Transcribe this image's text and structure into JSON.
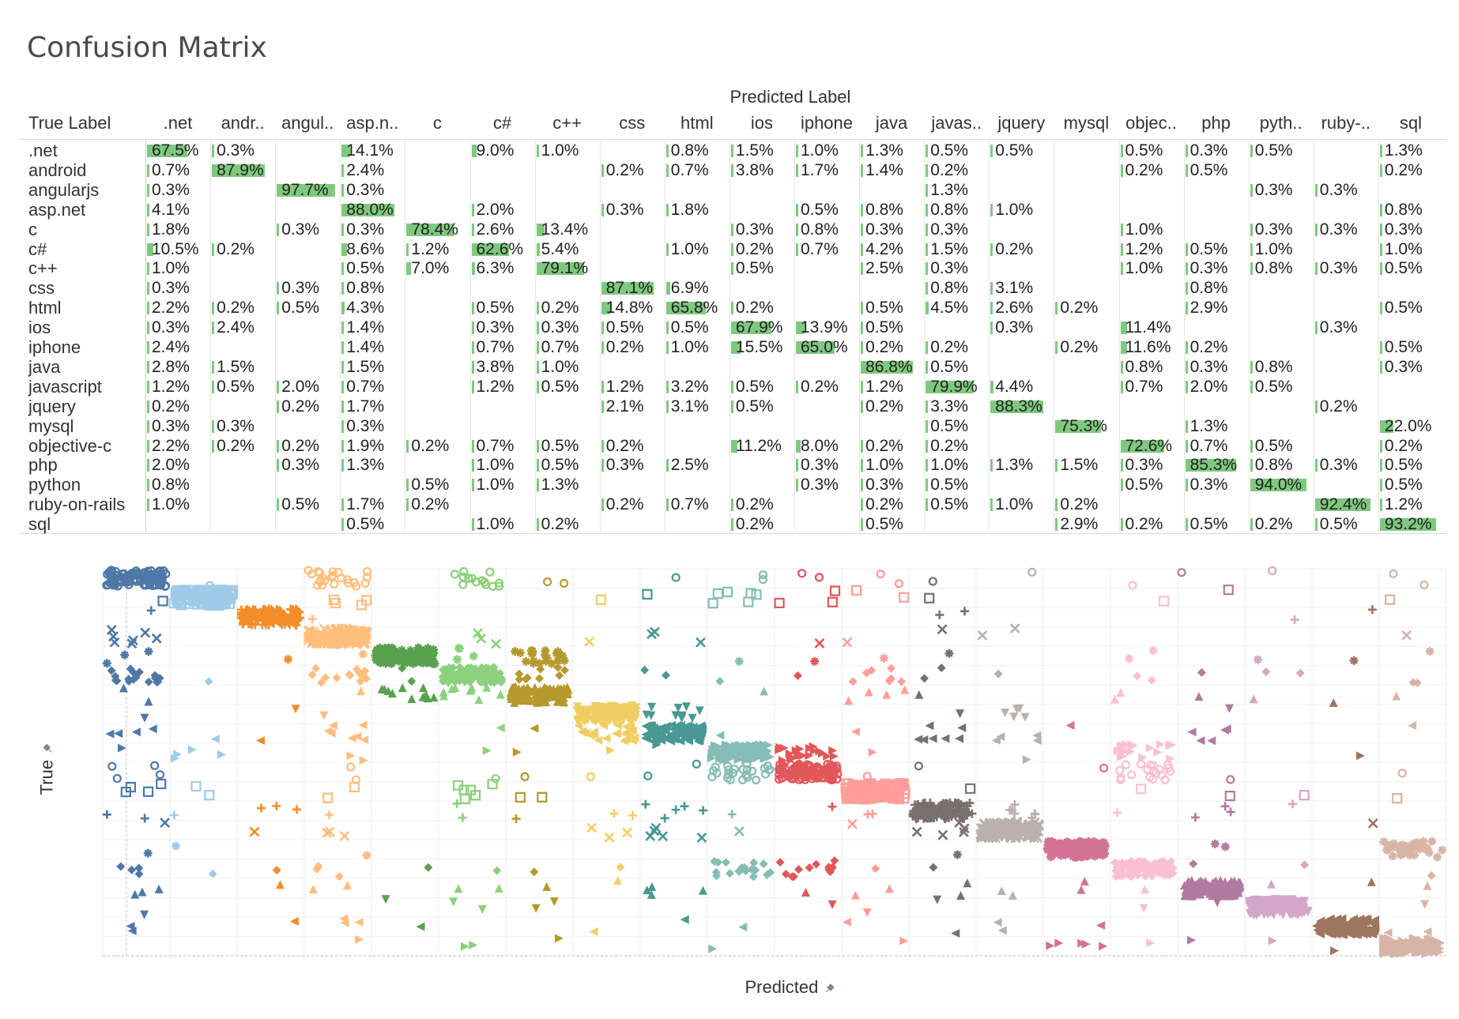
{
  "title": "Confusion Matrix",
  "table": {
    "column_header_title": "Predicted Label",
    "row_header_title": "True Label",
    "columns": [
      ".net",
      "andr..",
      "angul..",
      "asp.n..",
      "c",
      "c#",
      "c++",
      "css",
      "html",
      "ios",
      "iphone",
      "java",
      "javas..",
      "jquery",
      "mysql",
      "objec..",
      "php",
      "pyth..",
      "ruby-..",
      "sql"
    ],
    "rows": [
      ".net",
      "android",
      "angularjs",
      "asp.net",
      "c",
      "c#",
      "c++",
      "css",
      "html",
      "ios",
      "iphone",
      "java",
      "javascript",
      "jquery",
      "mysql",
      "objective-c",
      "php",
      "python",
      "ruby-on-rails",
      "sql"
    ],
    "cells": [
      [
        "67.5%",
        "0.3%",
        "",
        "14.1%",
        "",
        "9.0%",
        "1.0%",
        "",
        "0.8%",
        "1.5%",
        "1.0%",
        "1.3%",
        "0.5%",
        "0.5%",
        "",
        "0.5%",
        "0.3%",
        "0.5%",
        "",
        "1.3%"
      ],
      [
        "0.7%",
        "87.9%",
        "",
        "2.4%",
        "",
        "",
        "",
        "0.2%",
        "0.7%",
        "3.8%",
        "1.7%",
        "1.4%",
        "0.2%",
        "",
        "",
        "0.2%",
        "0.5%",
        "",
        "",
        "0.2%"
      ],
      [
        "0.3%",
        "",
        "97.7%",
        "0.3%",
        "",
        "",
        "",
        "",
        "",
        "",
        "",
        "",
        "1.3%",
        "",
        "",
        "",
        "",
        "0.3%",
        "0.3%",
        ""
      ],
      [
        "4.1%",
        "",
        "",
        "88.0%",
        "",
        "2.0%",
        "",
        "0.3%",
        "1.8%",
        "",
        "0.5%",
        "0.8%",
        "0.8%",
        "1.0%",
        "",
        "",
        "",
        "",
        "",
        "0.8%"
      ],
      [
        "1.8%",
        "",
        "0.3%",
        "0.3%",
        "78.4%",
        "2.6%",
        "13.4%",
        "",
        "",
        "0.3%",
        "0.8%",
        "0.3%",
        "0.3%",
        "",
        "",
        "1.0%",
        "",
        "0.3%",
        "0.3%",
        "0.3%"
      ],
      [
        "10.5%",
        "0.2%",
        "",
        "8.6%",
        "1.2%",
        "62.6%",
        "5.4%",
        "",
        "1.0%",
        "0.2%",
        "0.7%",
        "4.2%",
        "1.5%",
        "0.2%",
        "",
        "1.2%",
        "0.5%",
        "1.0%",
        "",
        "1.0%"
      ],
      [
        "1.0%",
        "",
        "",
        "0.5%",
        "7.0%",
        "6.3%",
        "79.1%",
        "",
        "",
        "0.5%",
        "",
        "2.5%",
        "0.3%",
        "",
        "",
        "1.0%",
        "0.3%",
        "0.8%",
        "0.3%",
        "0.5%"
      ],
      [
        "0.3%",
        "",
        "0.3%",
        "0.8%",
        "",
        "",
        "",
        "87.1%",
        "6.9%",
        "",
        "",
        "",
        "0.8%",
        "3.1%",
        "",
        "",
        "0.8%",
        "",
        "",
        ""
      ],
      [
        "2.2%",
        "0.2%",
        "0.5%",
        "4.3%",
        "",
        "0.5%",
        "0.2%",
        "14.8%",
        "65.8%",
        "0.2%",
        "",
        "0.5%",
        "4.5%",
        "2.6%",
        "0.2%",
        "",
        "2.9%",
        "",
        "",
        "0.5%"
      ],
      [
        "0.3%",
        "2.4%",
        "",
        "1.4%",
        "",
        "0.3%",
        "0.3%",
        "0.5%",
        "0.5%",
        "67.9%",
        "13.9%",
        "0.5%",
        "",
        "0.3%",
        "",
        "11.4%",
        "",
        "",
        "0.3%",
        ""
      ],
      [
        "2.4%",
        "",
        "",
        "1.4%",
        "",
        "0.7%",
        "0.7%",
        "0.2%",
        "1.0%",
        "15.5%",
        "65.0%",
        "0.2%",
        "0.2%",
        "",
        "0.2%",
        "11.6%",
        "0.2%",
        "",
        "",
        "0.5%"
      ],
      [
        "2.8%",
        "1.5%",
        "",
        "1.5%",
        "",
        "3.8%",
        "1.0%",
        "",
        "",
        "",
        "",
        "86.8%",
        "0.5%",
        "",
        "",
        "0.8%",
        "0.3%",
        "0.8%",
        "",
        "0.3%"
      ],
      [
        "1.2%",
        "0.5%",
        "2.0%",
        "0.7%",
        "",
        "1.2%",
        "0.5%",
        "1.2%",
        "3.2%",
        "0.5%",
        "0.2%",
        "1.2%",
        "79.9%",
        "4.4%",
        "",
        "0.7%",
        "2.0%",
        "0.5%",
        "",
        ""
      ],
      [
        "0.2%",
        "",
        "0.2%",
        "1.7%",
        "",
        "",
        "",
        "2.1%",
        "3.1%",
        "0.5%",
        "",
        "0.2%",
        "3.3%",
        "88.3%",
        "",
        "",
        "",
        "",
        "0.2%",
        ""
      ],
      [
        "0.3%",
        "0.3%",
        "",
        "0.3%",
        "",
        "",
        "",
        "",
        "",
        "",
        "",
        "",
        "0.5%",
        "",
        "75.3%",
        "",
        "1.3%",
        "",
        "",
        "22.0%"
      ],
      [
        "2.2%",
        "0.2%",
        "0.2%",
        "1.9%",
        "0.2%",
        "0.7%",
        "0.5%",
        "0.2%",
        "",
        "11.2%",
        "8.0%",
        "0.2%",
        "0.2%",
        "",
        "",
        "72.6%",
        "0.7%",
        "0.5%",
        "",
        "0.2%"
      ],
      [
        "2.0%",
        "",
        "0.3%",
        "1.3%",
        "",
        "1.0%",
        "0.5%",
        "0.3%",
        "2.5%",
        "",
        "0.3%",
        "1.0%",
        "1.0%",
        "1.3%",
        "1.5%",
        "0.3%",
        "85.3%",
        "0.8%",
        "0.3%",
        "0.5%"
      ],
      [
        "0.8%",
        "",
        "",
        "",
        "0.5%",
        "1.0%",
        "1.3%",
        "",
        "",
        "",
        "0.3%",
        "0.3%",
        "0.5%",
        "",
        "",
        "0.5%",
        "0.3%",
        "94.0%",
        "",
        "0.5%"
      ],
      [
        "1.0%",
        "",
        "0.5%",
        "1.7%",
        "0.2%",
        "",
        "",
        "0.2%",
        "0.7%",
        "0.2%",
        "",
        "0.2%",
        "0.5%",
        "1.0%",
        "0.2%",
        "",
        "",
        "",
        "92.4%",
        "1.2%"
      ],
      [
        "",
        "",
        "",
        "0.5%",
        "",
        "1.0%",
        "0.2%",
        "",
        "",
        "0.2%",
        "",
        "0.5%",
        "",
        "",
        "2.9%",
        "0.2%",
        "0.5%",
        "0.2%",
        "0.5%",
        "93.2%"
      ]
    ],
    "bar_color": "#7fc97f"
  },
  "chart_data": {
    "type": "scatter",
    "xlabel": "Predicted",
    "ylabel": "True",
    "categories": [
      ".net",
      "android",
      "angularjs",
      "asp.net",
      "c",
      "c#",
      "c++",
      "css",
      "html",
      "ios",
      "iphone",
      "java",
      "javascript",
      "jquery",
      "mysql",
      "objective-c",
      "php",
      "python",
      "ruby-on-rails",
      "sql"
    ],
    "colors": [
      "#4e79a7",
      "#a0cbe8",
      "#f28e2b",
      "#ffbe7d",
      "#59a14f",
      "#8cd17d",
      "#b6992d",
      "#f1ce63",
      "#499894",
      "#86bcb6",
      "#e15759",
      "#ff9d9a",
      "#79706e",
      "#bab0ac",
      "#d37295",
      "#fabfd2",
      "#b07aa1",
      "#d4a6c8",
      "#9d7660",
      "#d7b5a6"
    ],
    "shapes_by_true_label": [
      "circle",
      "square",
      "plus",
      "cross",
      "star",
      "diamond",
      "triangle-up",
      "triangle-down",
      "triangle-left",
      "triangle-right"
    ],
    "note_encoding": "point density per cell follows the confusion matrix percentages"
  },
  "icons": {
    "pin_x": "pin-icon",
    "pin_y": "pin-icon"
  }
}
